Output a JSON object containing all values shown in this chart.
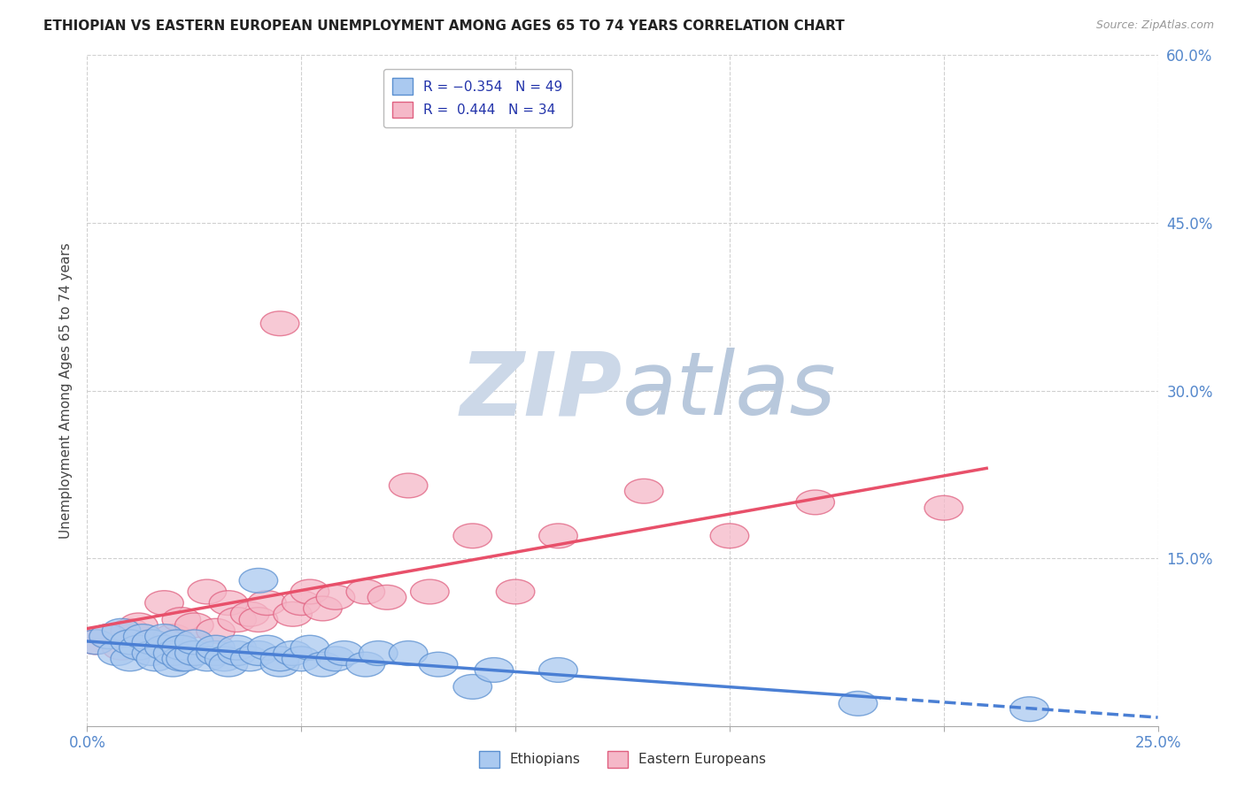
{
  "title": "ETHIOPIAN VS EASTERN EUROPEAN UNEMPLOYMENT AMONG AGES 65 TO 74 YEARS CORRELATION CHART",
  "source": "Source: ZipAtlas.com",
  "ylabel": "Unemployment Among Ages 65 to 74 years",
  "xlim": [
    0.0,
    0.25
  ],
  "ylim": [
    0.0,
    0.6
  ],
  "xticks": [
    0.0,
    0.05,
    0.1,
    0.15,
    0.2,
    0.25
  ],
  "xticklabels": [
    "0.0%",
    "",
    "",
    "",
    "",
    "25.0%"
  ],
  "yticks": [
    0.0,
    0.15,
    0.3,
    0.45,
    0.6
  ],
  "yticklabels": [
    "",
    "15.0%",
    "30.0%",
    "45.0%",
    "60.0%"
  ],
  "ethiopians_R": -0.354,
  "ethiopians_N": 49,
  "eastern_europeans_R": 0.444,
  "eastern_europeans_N": 34,
  "blue_fill": "#aac9f0",
  "blue_edge": "#5a8fd0",
  "pink_fill": "#f5b8c8",
  "pink_edge": "#e06080",
  "blue_line": "#4a7fd4",
  "pink_line": "#e8506a",
  "ethiopians_x": [
    0.002,
    0.005,
    0.007,
    0.008,
    0.01,
    0.01,
    0.012,
    0.013,
    0.015,
    0.015,
    0.016,
    0.018,
    0.018,
    0.02,
    0.02,
    0.021,
    0.022,
    0.022,
    0.023,
    0.025,
    0.025,
    0.028,
    0.03,
    0.03,
    0.032,
    0.033,
    0.035,
    0.035,
    0.038,
    0.04,
    0.04,
    0.042,
    0.045,
    0.045,
    0.048,
    0.05,
    0.052,
    0.055,
    0.058,
    0.06,
    0.065,
    0.068,
    0.075,
    0.082,
    0.09,
    0.095,
    0.11,
    0.18,
    0.22
  ],
  "ethiopians_y": [
    0.075,
    0.08,
    0.065,
    0.085,
    0.06,
    0.075,
    0.07,
    0.08,
    0.065,
    0.075,
    0.06,
    0.07,
    0.08,
    0.055,
    0.065,
    0.075,
    0.06,
    0.07,
    0.06,
    0.065,
    0.075,
    0.06,
    0.065,
    0.07,
    0.06,
    0.055,
    0.065,
    0.07,
    0.06,
    0.13,
    0.065,
    0.07,
    0.055,
    0.06,
    0.065,
    0.06,
    0.07,
    0.055,
    0.06,
    0.065,
    0.055,
    0.065,
    0.065,
    0.055,
    0.035,
    0.05,
    0.05,
    0.02,
    0.015
  ],
  "eastern_europeans_x": [
    0.002,
    0.005,
    0.008,
    0.01,
    0.012,
    0.015,
    0.018,
    0.02,
    0.022,
    0.025,
    0.028,
    0.03,
    0.033,
    0.035,
    0.038,
    0.04,
    0.042,
    0.045,
    0.048,
    0.05,
    0.052,
    0.055,
    0.058,
    0.065,
    0.07,
    0.075,
    0.08,
    0.09,
    0.1,
    0.11,
    0.13,
    0.15,
    0.17,
    0.2
  ],
  "eastern_europeans_y": [
    0.075,
    0.08,
    0.07,
    0.085,
    0.09,
    0.075,
    0.11,
    0.08,
    0.095,
    0.09,
    0.12,
    0.085,
    0.11,
    0.095,
    0.1,
    0.095,
    0.11,
    0.36,
    0.1,
    0.11,
    0.12,
    0.105,
    0.115,
    0.12,
    0.115,
    0.215,
    0.12,
    0.17,
    0.12,
    0.17,
    0.21,
    0.17,
    0.2,
    0.195
  ],
  "legend_labels": [
    "Ethiopians",
    "Eastern Europeans"
  ],
  "grid_color": "#d0d0d0",
  "bg_color": "#ffffff",
  "watermark_zip": "ZIP",
  "watermark_atlas": "atlas",
  "watermark_color_zip": "#c8d8e8",
  "watermark_color_atlas": "#b8c8d8"
}
